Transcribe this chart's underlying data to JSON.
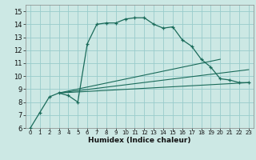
{
  "title": "",
  "xlabel": "Humidex (Indice chaleur)",
  "bg_color": "#cce8e4",
  "grid_color": "#99cccc",
  "line_color": "#1a6b5a",
  "xlim": [
    -0.5,
    23.5
  ],
  "ylim": [
    6,
    15.5
  ],
  "xticks": [
    0,
    1,
    2,
    3,
    4,
    5,
    6,
    7,
    8,
    9,
    10,
    11,
    12,
    13,
    14,
    15,
    16,
    17,
    18,
    19,
    20,
    21,
    22,
    23
  ],
  "yticks": [
    6,
    7,
    8,
    9,
    10,
    11,
    12,
    13,
    14,
    15
  ],
  "curve1_x": [
    0,
    1,
    2,
    3,
    4,
    5,
    6,
    7,
    8,
    9,
    10,
    11,
    12,
    13,
    14,
    15,
    16,
    17,
    18,
    19,
    20,
    21,
    22,
    23
  ],
  "curve1_y": [
    6.0,
    7.2,
    8.4,
    8.7,
    8.5,
    8.0,
    12.5,
    14.0,
    14.1,
    14.1,
    14.4,
    14.5,
    14.5,
    14.0,
    13.7,
    13.8,
    12.8,
    12.3,
    11.3,
    10.7,
    9.8,
    9.7,
    9.5,
    9.5
  ],
  "line2_x": [
    3,
    23
  ],
  "line2_y": [
    8.7,
    10.5
  ],
  "line3_x": [
    3,
    23
  ],
  "line3_y": [
    8.7,
    9.5
  ],
  "line4_x": [
    3,
    20
  ],
  "line4_y": [
    8.7,
    11.3
  ],
  "xlabel_fontsize": 6.5,
  "tick_fontsize_x": 5.0,
  "tick_fontsize_y": 6.0
}
